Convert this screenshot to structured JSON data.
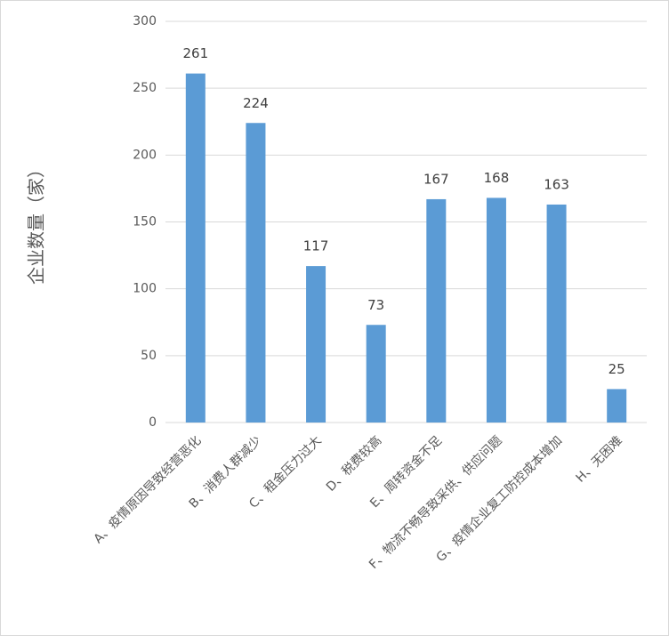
{
  "chart_data": {
    "type": "bar",
    "y_label": "企业数量（家）",
    "categories": [
      "A、疫情原因导致经营恶化",
      "B、消费人群减少",
      "C、租金压力过大",
      "D、税费较高",
      "E、周转资金不足",
      "F、物流不畅导致采供、供应问题",
      "G、疫情企业复工防控成本增加",
      "H、无困难"
    ],
    "values": [
      261,
      224,
      117,
      73,
      167,
      168,
      163,
      25
    ],
    "color": "#5b9bd5",
    "ylim": [
      0,
      300
    ],
    "yticks": [
      0,
      50,
      100,
      150,
      200,
      250,
      300
    ],
    "grid": true
  }
}
